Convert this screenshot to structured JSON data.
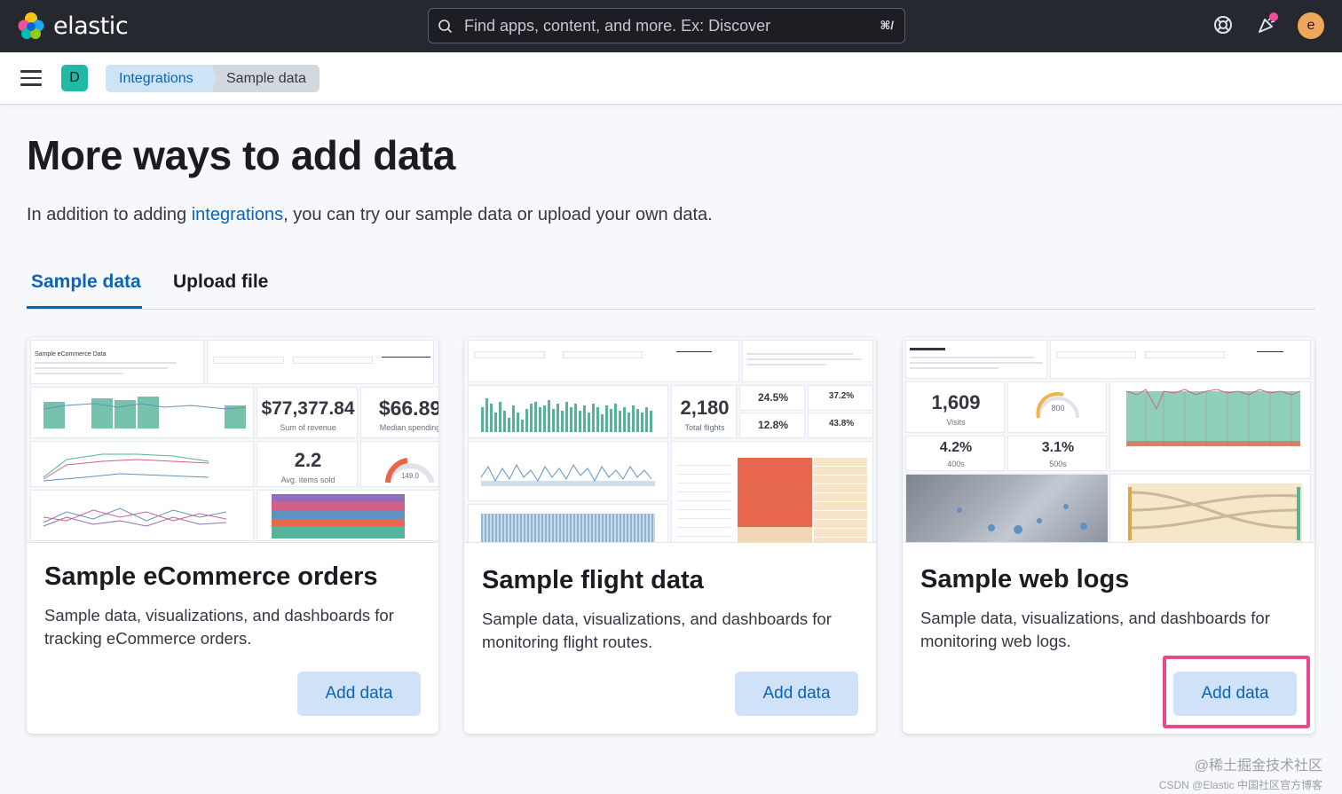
{
  "header": {
    "brand": "elastic",
    "search_placeholder": "Find apps, content, and more. Ex: Discover",
    "search_shortcut": "⌘/",
    "avatar_initial": "e",
    "notification_dot_color": "#f04e98"
  },
  "subheader": {
    "space_initial": "D",
    "breadcrumbs": [
      "Integrations",
      "Sample data"
    ]
  },
  "page": {
    "title": "More ways to add data",
    "intro_before": "In addition to adding ",
    "intro_link": "integrations",
    "intro_after": ", you can try our sample data or upload your own data."
  },
  "tabs": [
    "Sample data",
    "Upload file"
  ],
  "cards": [
    {
      "title": "Sample eCommerce orders",
      "description": "Sample data, visualizations, and dashboards for tracking eCommerce orders.",
      "button": "Add data",
      "preview": {
        "stat1_value": "$77,377.84",
        "stat1_label": "Sum of revenue",
        "stat2_value": "$66.89",
        "stat2_label": "Median spending",
        "stat3_value": "2.2",
        "stat3_label": "Avg. items sold",
        "gauge_value": "149.0"
      }
    },
    {
      "title": "Sample flight data",
      "description": "Sample data, visualizations, and dashboards for monitoring flight routes.",
      "button": "Add data",
      "preview": {
        "stat1_value": "2,180",
        "stat1_label": "Total flights",
        "pct1": "24.5%",
        "pct2": "37.2%",
        "pct3": "12.8%",
        "pct4": "43.8%"
      }
    },
    {
      "title": "Sample web logs",
      "description": "Sample data, visualizations, and dashboards for monitoring web logs.",
      "button": "Add data",
      "preview": {
        "stat1_value": "1,609",
        "stat1_label": "Visits",
        "gauge_value": "800",
        "stat2_value": "4.2%",
        "stat2_label": "400s",
        "stat3_value": "3.1%",
        "stat3_label": "500s"
      }
    }
  ],
  "watermark": {
    "line1": "@稀土掘金技术社区",
    "line2": "CSDN @Elastic 中国社区官方博客"
  }
}
